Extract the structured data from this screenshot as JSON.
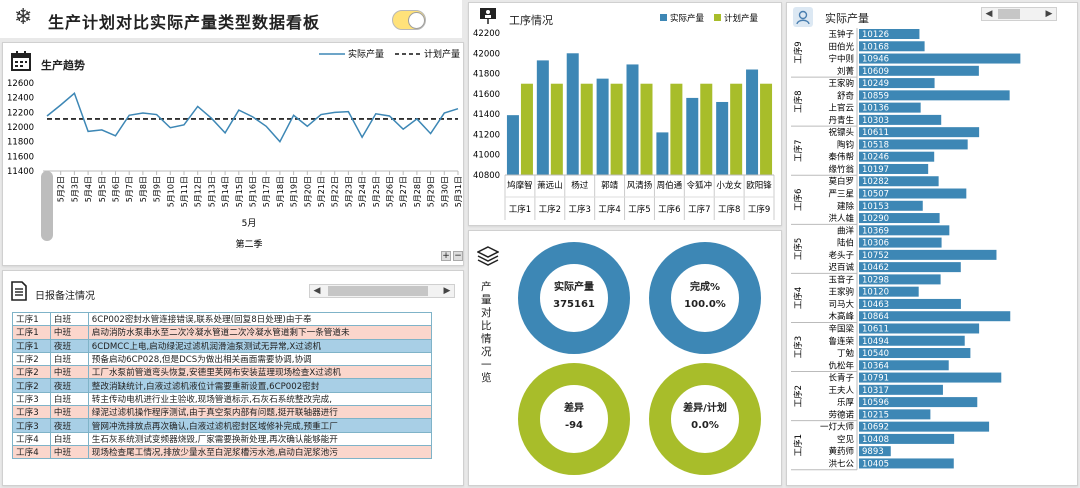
{
  "header": {
    "title": "生产计划对比实际产量类型数据看板",
    "toggle_color": "#ffe27a"
  },
  "trend": {
    "title": "生产趋势",
    "legend_actual": "实际产量",
    "legend_plan": "计划产量",
    "month_label": "5月",
    "quarter_label": "第二季",
    "y_ticks": [
      "12600",
      "12400",
      "12200",
      "12000",
      "11800",
      "11600",
      "11400"
    ],
    "x_labels": [
      "5月1日",
      "5月2日",
      "5月3日",
      "5月4日",
      "5月5日",
      "5月6日",
      "5月7日",
      "5月8日",
      "5月9日",
      "5月10日",
      "5月11日",
      "5月12日",
      "5月13日",
      "5月14日",
      "5月15日",
      "5月16日",
      "5月17日",
      "5月18日",
      "5月19日",
      "5月20日",
      "5月21日",
      "5月22日",
      "5月23日",
      "5月24日",
      "5月25日",
      "5月26日",
      "5月27日",
      "5月28日",
      "5月29日",
      "5月30日",
      "5月31日"
    ]
  },
  "process": {
    "title": "工序情况",
    "legend_actual": "实际产量",
    "legend_plan": "计划产量",
    "actual_color": "#3d87b5",
    "plan_color": "#a8bd2a",
    "y_ticks": [
      "42200",
      "42000",
      "41800",
      "41600",
      "41400",
      "41200",
      "41000",
      "40800"
    ]
  },
  "notes": {
    "title": "日报备注情况",
    "rows": [
      {
        "proc": "工序1",
        "shift": "白班",
        "text": "6CP002密封水管连接错误,联系处理(回复8日处理)由于奉",
        "bg": "#ffffff"
      },
      {
        "proc": "工序1",
        "shift": "中班",
        "text": "启动消防水泵串水至二次冷凝水管道二次冷凝水管道剩下一条管道未",
        "bg": "#fbd6cc"
      },
      {
        "proc": "工序1",
        "shift": "夜班",
        "text": "6CDMCC上电,启动绿泥过滤机润滑油泵测试无异常,X过滤机",
        "bg": "#a8cfe6"
      },
      {
        "proc": "工序2",
        "shift": "白班",
        "text": "预备启动6CP028,但是DCS为做出相关画面需要协调,协调",
        "bg": "#ffffff"
      },
      {
        "proc": "工序2",
        "shift": "中班",
        "text": "工厂水泵前管道弯头恢复,安德里芙网布安装蓝理现场检查X过滤机",
        "bg": "#fbd6cc"
      },
      {
        "proc": "工序2",
        "shift": "夜班",
        "text": "整改消缺统计,白液过滤机液位计需要重新设置,6CP002密封",
        "bg": "#a8cfe6"
      },
      {
        "proc": "工序3",
        "shift": "白班",
        "text": "转主传动电机进行业主验收,现场管道标示,石灰石系统整改完成,",
        "bg": "#ffffff"
      },
      {
        "proc": "工序3",
        "shift": "中班",
        "text": "绿泥过滤机操作程序测试,由于真空泵内部有问题,挺开联轴器进行",
        "bg": "#fbd6cc"
      },
      {
        "proc": "工序3",
        "shift": "夜班",
        "text": "管网冲洗排放点再次确认,白液过滤机密封区域修补完成,预重工厂",
        "bg": "#a8cfe6"
      },
      {
        "proc": "工序4",
        "shift": "白班",
        "text": "生石灰系统测试变频器烧毁,厂家需要换新处理,再次确认能够能开",
        "bg": "#ffffff"
      },
      {
        "proc": "工序4",
        "shift": "中班",
        "text": "现场检查尾工情况,排放少量水至白泥浆槽污水池,启动白泥浆池污",
        "bg": "#fbd6cc"
      }
    ]
  },
  "ratio": {
    "title": "产量对比情况一览",
    "actual_label": "实际产量",
    "actual_value": "375161",
    "complete_label": "完成%",
    "complete_value": "100.0%",
    "diff_label": "差异",
    "diff_value": "-94",
    "diff_ratio_label": "差异/计划",
    "diff_ratio_value": "0.0%",
    "blue": "#3d87b5",
    "green": "#a8bd2a"
  },
  "actual": {
    "title": "实际产量",
    "bar_color": "#3d87b5",
    "groups": [
      "工序9",
      "工序8",
      "工序7",
      "工序6",
      "工序5",
      "工序4",
      "工序3",
      "工序2",
      "工序1"
    ]
  },
  "chart_data": [
    {
      "type": "line",
      "title": "生产趋势",
      "x": [
        "5月1日",
        "5月2日",
        "5月3日",
        "5月4日",
        "5月5日",
        "5月6日",
        "5月7日",
        "5月8日",
        "5月9日",
        "5月10日",
        "5月11日",
        "5月12日",
        "5月13日",
        "5月14日",
        "5月15日",
        "5月16日",
        "5月17日",
        "5月18日",
        "5月19日",
        "5月20日",
        "5月21日",
        "5月22日",
        "5月23日",
        "5月24日",
        "5月25日",
        "5月26日",
        "5月27日",
        "5月28日",
        "5月29日",
        "5月30日",
        "5月31日"
      ],
      "ylim": [
        11400,
        12600
      ],
      "series": [
        {
          "name": "实际产量",
          "values": [
            12150,
            12300,
            12460,
            11940,
            11960,
            11880,
            12160,
            12190,
            12170,
            11990,
            12030,
            12280,
            12120,
            11920,
            12230,
            12140,
            12010,
            11800,
            12160,
            12010,
            12170,
            12200,
            12210,
            11860,
            12180,
            12150,
            11970,
            12110,
            11910,
            12190,
            12250
          ]
        },
        {
          "name": "计划产量",
          "values": [
            12110,
            12110,
            12110,
            12110,
            12110,
            12110,
            12110,
            12110,
            12110,
            12110,
            12110,
            12110,
            12110,
            12110,
            12110,
            12110,
            12110,
            12110,
            12110,
            12110,
            12110,
            12110,
            12110,
            12110,
            12110,
            12110,
            12110,
            12110,
            12110,
            12110,
            12110
          ]
        }
      ]
    },
    {
      "type": "bar",
      "title": "工序情况",
      "categories": [
        "工序1",
        "工序2",
        "工序3",
        "工序4",
        "工序5",
        "工序6",
        "工序7",
        "工序8",
        "工序9"
      ],
      "x_labels": [
        "鸠摩智",
        "萧远山",
        "杨过",
        "郭靖",
        "风清扬",
        "周伯通",
        "令狐冲",
        "小龙女",
        "欧阳锋"
      ],
      "ylim": [
        40800,
        42200
      ],
      "series": [
        {
          "name": "实际产量",
          "values": [
            41390,
            41930,
            42000,
            41750,
            41890,
            41220,
            41560,
            41520,
            41840
          ]
        },
        {
          "name": "计划产量",
          "values": [
            41700,
            41700,
            41700,
            41700,
            41700,
            41700,
            41700,
            41700,
            41700
          ]
        }
      ]
    },
    {
      "type": "bar",
      "title": "实际产量",
      "orientation": "horizontal",
      "categories": [
        "玉钟子",
        "田伯光",
        "宁中则",
        "刘菁",
        "王家驹",
        "舒奇",
        "上官云",
        "丹青生",
        "祝镖头",
        "陶钧",
        "秦伟帮",
        "缘竹翁",
        "莫白罗",
        "严三星",
        "建除",
        "洪人雄",
        "曲洋",
        "陆伯",
        "老头子",
        "迟百诚",
        "玉音子",
        "王家驹",
        "司马大",
        "木高峰",
        "辛国梁",
        "鲁连荣",
        "丁勉",
        "仇松年",
        "长青子",
        "王夫人",
        "乐厚",
        "劳德诺",
        "一灯大师",
        "空见",
        "黄药师",
        "洪七公"
      ],
      "groups": [
        {
          "name": "工序9",
          "count": 4
        },
        {
          "name": "工序8",
          "count": 4
        },
        {
          "name": "工序7",
          "count": 4
        },
        {
          "name": "工序6",
          "count": 4
        },
        {
          "name": "工序5",
          "count": 4
        },
        {
          "name": "工序4",
          "count": 4
        },
        {
          "name": "工序3",
          "count": 4
        },
        {
          "name": "工序2",
          "count": 4
        },
        {
          "name": "工序1",
          "count": 4
        }
      ],
      "values": [
        10126,
        10168,
        10946,
        10609,
        10249,
        10859,
        10136,
        10303,
        10611,
        10518,
        10246,
        10197,
        10282,
        10507,
        10153,
        10290,
        10369,
        10306,
        10752,
        10462,
        10298,
        10120,
        10463,
        10864,
        10611,
        10494,
        10540,
        10364,
        10791,
        10317,
        10596,
        10215,
        10692,
        10408,
        9893,
        10405
      ]
    }
  ]
}
